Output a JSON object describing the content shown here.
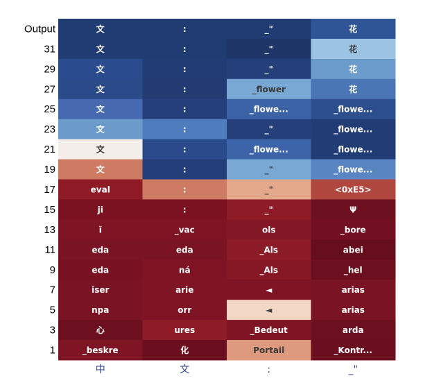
{
  "chart_data": {
    "type": "heatmap",
    "title": "",
    "xlabel": "",
    "ylabel": "",
    "grid": false,
    "legend": "none",
    "color_scale": {
      "low": "#1e3366",
      "mid": "#f3ede8",
      "high": "#6b0e1f"
    },
    "x_labels": [
      "中",
      "文",
      ":",
      "_\""
    ],
    "rows": [
      {
        "label": "Output",
        "cells": [
          {
            "token": "文",
            "color": "#213b73"
          },
          {
            "token": ":",
            "color": "#213b73"
          },
          {
            "token": "_\"",
            "color": "#213b73"
          },
          {
            "token": "花",
            "color": "#2f5597"
          }
        ]
      },
      {
        "label": "31",
        "cells": [
          {
            "token": "文",
            "color": "#213b73"
          },
          {
            "token": ":",
            "color": "#213b73"
          },
          {
            "token": "_\"",
            "color": "#1f3668"
          },
          {
            "token": "花",
            "color": "#9dc3e2"
          }
        ]
      },
      {
        "label": "29",
        "cells": [
          {
            "token": "文",
            "color": "#2a4b8d"
          },
          {
            "token": ":",
            "color": "#223c75"
          },
          {
            "token": "_\"",
            "color": "#253f7a"
          },
          {
            "token": "花",
            "color": "#6b9ccc"
          }
        ]
      },
      {
        "label": "27",
        "cells": [
          {
            "token": "文",
            "color": "#2a4a8a"
          },
          {
            "token": ":",
            "color": "#223b73"
          },
          {
            "token": "_flower",
            "color": "#7aa8d4"
          },
          {
            "token": "花",
            "color": "#4a76b6"
          }
        ]
      },
      {
        "label": "25",
        "cells": [
          {
            "token": "文",
            "color": "#4669b0"
          },
          {
            "token": ":",
            "color": "#253f7b"
          },
          {
            "token": "_flowe...",
            "color": "#3c63a6"
          },
          {
            "token": "_flowe...",
            "color": "#2e4f8e"
          }
        ]
      },
      {
        "label": "23",
        "cells": [
          {
            "token": "文",
            "color": "#6b9acb"
          },
          {
            "token": ":",
            "color": "#4f7dbd"
          },
          {
            "token": "_\"",
            "color": "#253f7b"
          },
          {
            "token": "_flowe...",
            "color": "#223c76"
          }
        ]
      },
      {
        "label": "21",
        "cells": [
          {
            "token": "文",
            "color": "#f4eeea"
          },
          {
            "token": ":",
            "color": "#2b4a8c"
          },
          {
            "token": "_flowe...",
            "color": "#3d64a8"
          },
          {
            "token": "_flowe...",
            "color": "#223c76"
          }
        ]
      },
      {
        "label": "19",
        "cells": [
          {
            "token": "文",
            "color": "#cd7b62"
          },
          {
            "token": ":",
            "color": "#233e78"
          },
          {
            "token": "_\"",
            "color": "#7aa8d4"
          },
          {
            "token": "_flowe...",
            "color": "#5a85c3"
          }
        ]
      },
      {
        "label": "17",
        "cells": [
          {
            "token": "eval",
            "color": "#8e1b25"
          },
          {
            "token": ":",
            "color": "#cd7b62"
          },
          {
            "token": "_\"",
            "color": "#e4a98a"
          },
          {
            "token": "<0xE5>",
            "color": "#b0473f"
          }
        ]
      },
      {
        "label": "15",
        "cells": [
          {
            "token": "ji",
            "color": "#7a1222"
          },
          {
            "token": ":",
            "color": "#7a1222"
          },
          {
            "token": "_\"",
            "color": "#8e1c27"
          },
          {
            "token": "Ψ",
            "color": "#6d1020"
          }
        ]
      },
      {
        "label": "13",
        "cells": [
          {
            "token": "ĭ",
            "color": "#7e1424"
          },
          {
            "token": "_vac",
            "color": "#7e1424"
          },
          {
            "token": "ols",
            "color": "#841726"
          },
          {
            "token": "_bore",
            "color": "#721021"
          }
        ]
      },
      {
        "label": "11",
        "cells": [
          {
            "token": "eda",
            "color": "#7a1323"
          },
          {
            "token": "eda",
            "color": "#7a1323"
          },
          {
            "token": "_Als",
            "color": "#8b1b27"
          },
          {
            "token": "abei",
            "color": "#660e1e"
          }
        ]
      },
      {
        "label": "9",
        "cells": [
          {
            "token": "eda",
            "color": "#781222"
          },
          {
            "token": "ná",
            "color": "#7e1424"
          },
          {
            "token": "_Als",
            "color": "#861826"
          },
          {
            "token": "_hel",
            "color": "#6c0f1f"
          }
        ]
      },
      {
        "label": "7",
        "cells": [
          {
            "token": "iser",
            "color": "#7a1323"
          },
          {
            "token": "arie",
            "color": "#7e1424"
          },
          {
            "token": "◄",
            "color": "#7e1424"
          },
          {
            "token": "arias",
            "color": "#7a1323"
          }
        ]
      },
      {
        "label": "5",
        "cells": [
          {
            "token": "npa",
            "color": "#7a1323"
          },
          {
            "token": "orr",
            "color": "#7e1424"
          },
          {
            "token": "◄",
            "color": "#f2d7c4"
          },
          {
            "token": "arias",
            "color": "#7a1323"
          }
        ]
      },
      {
        "label": "3",
        "cells": [
          {
            "token": "心",
            "color": "#6c0f1f"
          },
          {
            "token": "ures",
            "color": "#8e1c27"
          },
          {
            "token": "_Bedeut",
            "color": "#7e1424"
          },
          {
            "token": "arda",
            "color": "#6c0f1f"
          }
        ]
      },
      {
        "label": "1",
        "cells": [
          {
            "token": "_beskre",
            "color": "#7e1424"
          },
          {
            "token": "化",
            "color": "#6b0e1f"
          },
          {
            "token": "Portail",
            "color": "#dd9a7e"
          },
          {
            "token": "_Kontr...",
            "color": "#6b0e1f"
          }
        ]
      }
    ]
  }
}
